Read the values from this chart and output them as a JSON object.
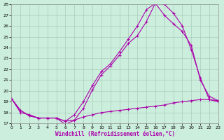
{
  "bg_color": "#cceedd",
  "grid_color": "#aaccbb",
  "line_color": "#aa00aa",
  "xlim": [
    0,
    23
  ],
  "ylim": [
    17,
    28
  ],
  "xticks": [
    0,
    1,
    2,
    3,
    4,
    5,
    6,
    7,
    8,
    9,
    10,
    11,
    12,
    13,
    14,
    15,
    16,
    17,
    18,
    19,
    20,
    21,
    22,
    23
  ],
  "yticks": [
    17,
    18,
    19,
    20,
    21,
    22,
    23,
    24,
    25,
    26,
    27,
    28
  ],
  "xlabel": "Windchill (Refroidissement éolien,°C)",
  "line1_x": [
    0,
    1,
    2,
    3,
    4,
    5,
    6,
    7,
    8,
    9,
    10,
    11,
    12,
    13,
    14,
    15,
    16,
    17,
    18,
    19,
    20,
    21,
    22,
    23
  ],
  "line1_y": [
    19.3,
    18.2,
    17.7,
    17.5,
    17.5,
    17.5,
    16.9,
    17.3,
    18.4,
    20.1,
    21.5,
    22.3,
    23.3,
    24.4,
    25.1,
    26.4,
    28.1,
    28.0,
    27.2,
    26.0,
    23.8,
    21.2,
    19.2,
    19.1
  ],
  "line2_x": [
    0,
    1,
    2,
    3,
    4,
    5,
    6,
    7,
    8,
    9,
    10,
    11,
    12,
    13,
    14,
    15,
    16,
    17,
    18,
    19,
    20,
    21,
    22,
    23
  ],
  "line2_y": [
    19.3,
    18.2,
    17.7,
    17.5,
    17.5,
    17.5,
    17.2,
    17.8,
    19.0,
    20.5,
    21.8,
    22.5,
    23.6,
    24.8,
    26.0,
    27.5,
    28.1,
    27.0,
    26.2,
    25.5,
    24.2,
    21.0,
    19.5,
    19.1
  ],
  "line3_x": [
    0,
    1,
    2,
    3,
    4,
    5,
    6,
    7,
    8,
    9,
    10,
    11,
    12,
    13,
    14,
    15,
    16,
    17,
    18,
    19,
    20,
    21,
    22,
    23
  ],
  "line3_y": [
    19.3,
    18.0,
    17.8,
    17.5,
    17.5,
    17.5,
    17.2,
    17.3,
    17.6,
    17.8,
    18.0,
    18.1,
    18.2,
    18.3,
    18.4,
    18.5,
    18.6,
    18.7,
    18.9,
    19.0,
    19.1,
    19.2,
    19.2,
    19.0
  ]
}
